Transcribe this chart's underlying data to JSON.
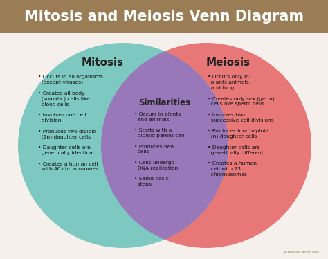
{
  "title": "Mitosis and Meiosis Venn Diagram",
  "title_bg_color": "#9b7d55",
  "title_font_color": "white",
  "body_bg_color": "#f5f0eb",
  "circle_left_color": "#7dc8c0",
  "circle_right_color": "#e87878",
  "overlap_color": "#9878b8",
  "left_label": "Mitosis",
  "right_label": "Meiosis",
  "center_label": "Similarities",
  "left_items": "• Occurs in all organisms\n  (except viruses)\n\n• Creates all body\n  (somatic) cells like\n  blood cells\n\n• Involves one cell\n  division\n\n• Produces two diploid\n  (2n) daughter cells\n\n• Daughter cells are\n  genetically identical\n\n• Creates a human cell\n  with 46 chromosomes",
  "center_items": "• Occurs in plants\n  and animals\n\n• Starts with a\n  diploid parent cell\n\n• Produces new\n  cells\n\n• Cells undergo\n  DNA replication\n\n• Same basic\n  steps",
  "right_items": "• Occurs only in\n  plants,animals,\n  and fungi\n\n• Creates only sex (germ)\n  cells like sperm cells\n\n• Involves two\n  successive cell divisions\n\n• Produces four haploid\n  (n) daughter cells\n\n• Daughter cells are\n  genetically different\n\n• Creates a human\n  cell with 23\n  chromosomes",
  "watermark": "ScienceFacts.net",
  "fig_width": 4.74,
  "fig_height": 3.74,
  "dpi": 100
}
